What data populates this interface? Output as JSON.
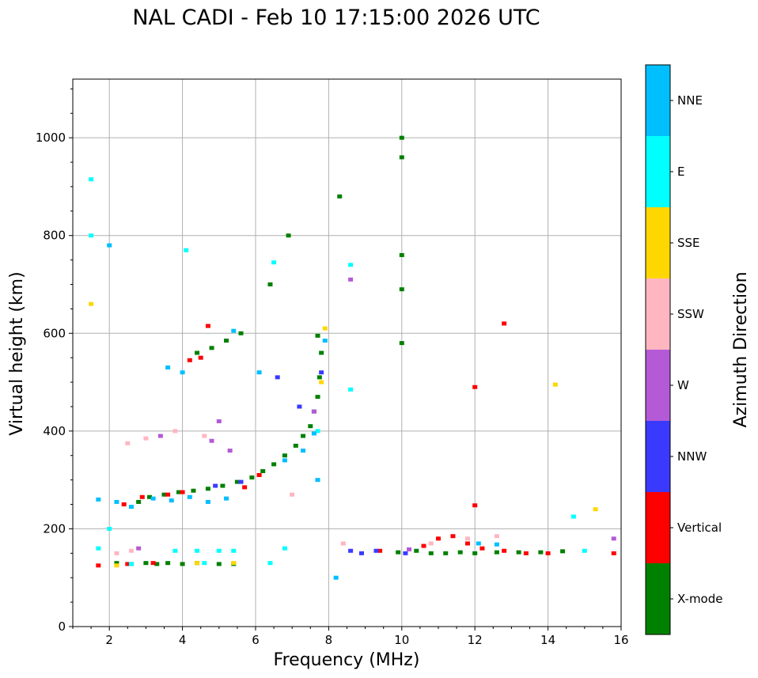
{
  "chart_data": {
    "type": "scatter",
    "title": "NAL CADI - Feb 10 17:15:00 2026 UTC",
    "xlabel": "Frequency (MHz)",
    "ylabel": "Virtual height (km)",
    "xlim": [
      1,
      16
    ],
    "ylim": [
      0,
      1120
    ],
    "xticks": [
      2,
      4,
      6,
      8,
      10,
      12,
      14,
      16
    ],
    "yticks": [
      0,
      200,
      400,
      600,
      800,
      1000
    ],
    "grid": true,
    "colorbar": {
      "label": "Azimuth Direction",
      "categories": [
        "X-mode",
        "Vertical",
        "NNW",
        "W",
        "SSW",
        "SSE",
        "E",
        "NNE"
      ],
      "colors": [
        "#008000",
        "#ff0000",
        "#3a3aff",
        "#b45ad6",
        "#ffb6c1",
        "#ffd700",
        "#00ffff",
        "#00bfff"
      ]
    },
    "series": [
      {
        "name": "X-mode",
        "points": [
          [
            2.2,
            130
          ],
          [
            2.6,
            128
          ],
          [
            3.0,
            130
          ],
          [
            3.3,
            128
          ],
          [
            3.6,
            130
          ],
          [
            4.0,
            128
          ],
          [
            4.4,
            130
          ],
          [
            5.0,
            128
          ],
          [
            5.4,
            128
          ],
          [
            2.8,
            255
          ],
          [
            3.1,
            265
          ],
          [
            3.5,
            270
          ],
          [
            3.9,
            275
          ],
          [
            4.3,
            278
          ],
          [
            4.7,
            282
          ],
          [
            5.1,
            288
          ],
          [
            5.5,
            296
          ],
          [
            5.9,
            305
          ],
          [
            6.2,
            318
          ],
          [
            6.5,
            332
          ],
          [
            6.8,
            350
          ],
          [
            7.1,
            370
          ],
          [
            7.3,
            390
          ],
          [
            7.5,
            410
          ],
          [
            7.6,
            440
          ],
          [
            7.7,
            470
          ],
          [
            7.75,
            510
          ],
          [
            7.8,
            560
          ],
          [
            7.7,
            595
          ],
          [
            4.4,
            560
          ],
          [
            4.8,
            570
          ],
          [
            5.2,
            585
          ],
          [
            5.6,
            600
          ],
          [
            6.4,
            700
          ],
          [
            6.9,
            800
          ],
          [
            10.0,
            1000
          ],
          [
            10.0,
            960
          ],
          [
            10.0,
            760
          ],
          [
            10.0,
            690
          ],
          [
            10.0,
            580
          ],
          [
            8.3,
            880
          ],
          [
            10.4,
            155
          ],
          [
            10.8,
            150
          ],
          [
            11.2,
            150
          ],
          [
            11.6,
            152
          ],
          [
            12.0,
            150
          ],
          [
            12.6,
            152
          ],
          [
            13.2,
            152
          ],
          [
            13.8,
            152
          ],
          [
            14.4,
            154
          ],
          [
            9.9,
            152
          ]
        ]
      },
      {
        "name": "Vertical",
        "points": [
          [
            1.7,
            125
          ],
          [
            2.5,
            128
          ],
          [
            3.2,
            130
          ],
          [
            2.4,
            250
          ],
          [
            2.9,
            265
          ],
          [
            3.6,
            270
          ],
          [
            4.0,
            275
          ],
          [
            4.2,
            545
          ],
          [
            4.5,
            550
          ],
          [
            4.7,
            615
          ],
          [
            5.7,
            285
          ],
          [
            6.1,
            310
          ],
          [
            10.6,
            165
          ],
          [
            11.0,
            180
          ],
          [
            11.4,
            185
          ],
          [
            11.8,
            170
          ],
          [
            12.2,
            160
          ],
          [
            12.8,
            155
          ],
          [
            13.4,
            150
          ],
          [
            14.0,
            150
          ],
          [
            15.8,
            150
          ],
          [
            12.0,
            490
          ],
          [
            12.0,
            248
          ],
          [
            12.8,
            620
          ],
          [
            9.4,
            155
          ]
        ]
      },
      {
        "name": "NNW",
        "points": [
          [
            8.6,
            155
          ],
          [
            8.9,
            150
          ],
          [
            9.3,
            155
          ],
          [
            10.1,
            150
          ],
          [
            4.9,
            288
          ],
          [
            5.6,
            296
          ],
          [
            6.6,
            510
          ],
          [
            7.2,
            450
          ],
          [
            7.8,
            520
          ]
        ]
      },
      {
        "name": "W",
        "points": [
          [
            3.4,
            390
          ],
          [
            5.0,
            420
          ],
          [
            4.8,
            380
          ],
          [
            5.3,
            360
          ],
          [
            2.8,
            160
          ],
          [
            8.6,
            710
          ],
          [
            10.2,
            158
          ],
          [
            15.8,
            180
          ],
          [
            7.6,
            440
          ]
        ]
      },
      {
        "name": "SSW",
        "points": [
          [
            2.2,
            150
          ],
          [
            2.6,
            155
          ],
          [
            3.0,
            385
          ],
          [
            2.5,
            375
          ],
          [
            3.8,
            400
          ],
          [
            4.6,
            390
          ],
          [
            10.8,
            170
          ],
          [
            11.8,
            180
          ],
          [
            12.6,
            185
          ],
          [
            7.0,
            270
          ],
          [
            8.4,
            170
          ]
        ]
      },
      {
        "name": "SSE",
        "points": [
          [
            1.5,
            660
          ],
          [
            4.4,
            130
          ],
          [
            5.4,
            130
          ],
          [
            7.9,
            610
          ],
          [
            7.8,
            500
          ],
          [
            14.2,
            495
          ],
          [
            15.3,
            240
          ],
          [
            2.2,
            125
          ]
        ]
      },
      {
        "name": "E",
        "points": [
          [
            1.5,
            915
          ],
          [
            1.5,
            800
          ],
          [
            4.1,
            770
          ],
          [
            6.5,
            745
          ],
          [
            8.6,
            740
          ],
          [
            8.6,
            485
          ],
          [
            6.4,
            130
          ],
          [
            6.8,
            160
          ],
          [
            3.8,
            155
          ],
          [
            4.4,
            155
          ],
          [
            5.0,
            155
          ],
          [
            5.4,
            155
          ],
          [
            2.6,
            128
          ],
          [
            4.6,
            130
          ],
          [
            14.7,
            225
          ],
          [
            15.0,
            155
          ],
          [
            1.7,
            160
          ],
          [
            2.0,
            200
          ],
          [
            7.7,
            400
          ]
        ]
      },
      {
        "name": "NNE",
        "points": [
          [
            1.7,
            260
          ],
          [
            2.2,
            255
          ],
          [
            2.6,
            245
          ],
          [
            3.2,
            262
          ],
          [
            3.7,
            258
          ],
          [
            4.2,
            265
          ],
          [
            4.7,
            255
          ],
          [
            5.2,
            262
          ],
          [
            3.6,
            530
          ],
          [
            4.0,
            520
          ],
          [
            5.4,
            605
          ],
          [
            6.1,
            520
          ],
          [
            6.8,
            340
          ],
          [
            7.3,
            360
          ],
          [
            7.6,
            395
          ],
          [
            7.9,
            585
          ],
          [
            2.0,
            780
          ],
          [
            7.7,
            300
          ],
          [
            8.2,
            100
          ],
          [
            12.1,
            170
          ],
          [
            12.6,
            168
          ]
        ]
      }
    ]
  }
}
